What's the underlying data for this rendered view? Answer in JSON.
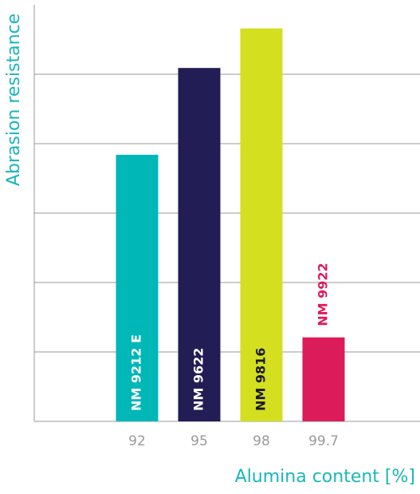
{
  "chart_data": {
    "type": "bar",
    "categories": [
      "92",
      "95",
      "98",
      "99.7"
    ],
    "values": [
      3.84,
      5.09,
      5.66,
      1.21
    ],
    "bar_labels": [
      "NM 9212 E",
      "NM 9622",
      "NM 9816",
      "NM 9922"
    ],
    "colors": [
      "#00b7b8",
      "#221d55",
      "#d4df1f",
      "#dc1c5a"
    ],
    "label_colors": [
      "#ffffff",
      "#ffffff",
      "#1a1a1a",
      "#dc1c5a"
    ],
    "x_label": "Alumina content [%]",
    "y_label": "Abrasion resistance",
    "ylim": [
      0,
      6
    ],
    "yticks": [
      1,
      2,
      3,
      4,
      5
    ],
    "grid": true
  }
}
